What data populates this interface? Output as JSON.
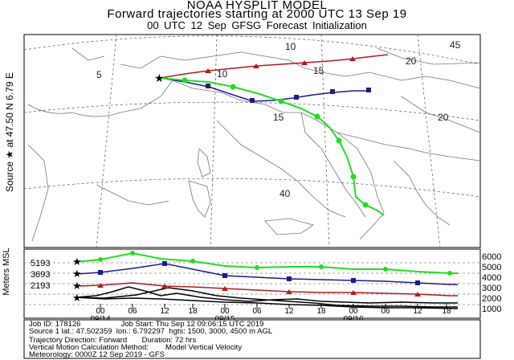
{
  "header": {
    "line1": "NOAA HYSPLIT MODEL",
    "line2": "Forward trajectories starting at 2000 UTC 13 Sep 19",
    "line3": "00 UTC 12 Sep    GFSG  Forecast Initialization"
  },
  "map": {
    "source_label": "Source ★ at   47.50 N   6.79 E",
    "grid_labels": [
      "5",
      "10",
      "15",
      "20",
      "15",
      "10",
      "20",
      "45",
      "40"
    ],
    "colors": {
      "high": "#22dd22",
      "mid": "#1c1c8c",
      "low": "#b01c1c"
    }
  },
  "vertical": {
    "axis_label": "Meters MSL",
    "start_levels": [
      "5193",
      "3693",
      "2193"
    ],
    "right_ticks": [
      "6000",
      "5000",
      "4000",
      "3000",
      "2000",
      "1000"
    ],
    "hour_labels": [
      "00",
      "06",
      "12",
      "18",
      "00",
      "06",
      "12",
      "18",
      "00",
      "06",
      "12",
      "18"
    ],
    "date_labels": [
      "09/14",
      "09/15",
      "09/16"
    ]
  },
  "info": {
    "line1": "Job ID: 178126                   Job Start: Thu Sep 12 09:06:15 UTC 2019",
    "line2": "Source 1 lat.: 47.502359  lon.: 6.792297  hgts: 1500, 3000, 4500 m AGL",
    "line3": "Trajectory Direction: Forward       Duration: 72 hrs",
    "line4": "Vertical Motion Calculation Method:        Model Vertical Velocity",
    "line5": "Meteorology: 0000Z 12 Sep 2019 - GFS"
  }
}
